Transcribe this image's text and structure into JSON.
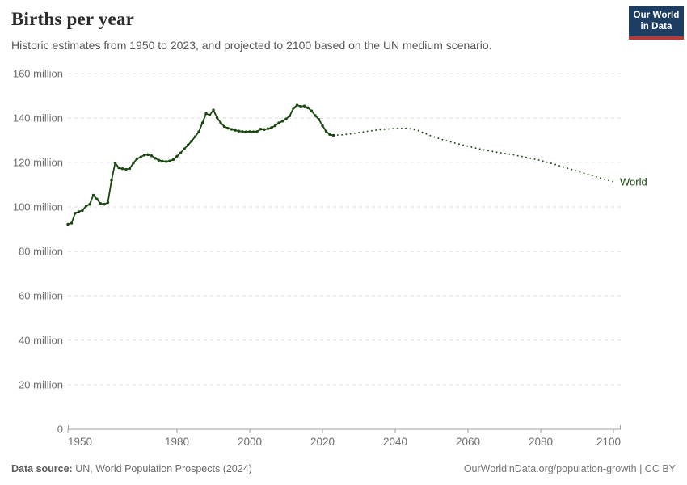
{
  "header": {
    "title": "Births per year",
    "subtitle": "Historic estimates from 1950 to 2023, and projected to 2100 based on the UN medium scenario."
  },
  "logo": {
    "line1": "Our World",
    "line2": "in Data"
  },
  "footer": {
    "source_label": "Data source:",
    "source_text": " UN, World Population Prospects (2024)",
    "link_text": "OurWorldinData.org/population-growth | CC BY"
  },
  "chart_data": {
    "type": "line",
    "title": "Births per year",
    "xlabel": "",
    "ylabel": "",
    "unit": "million",
    "xlim": [
      1950,
      2100
    ],
    "ylim": [
      0,
      160
    ],
    "grid": true,
    "legend_position": "end-of-line",
    "end_label": "World",
    "colors": {
      "line": "#18470f",
      "grid": "#dcdcdc",
      "axis": "#a1a1a1",
      "tick_text": "#6e6e6e"
    },
    "xticks": [
      1950,
      1980,
      2000,
      2020,
      2040,
      2060,
      2080,
      2100
    ],
    "yticks": [
      {
        "v": 0,
        "label": "0"
      },
      {
        "v": 20,
        "label": "20 million"
      },
      {
        "v": 40,
        "label": "40 million"
      },
      {
        "v": 60,
        "label": "60 million"
      },
      {
        "v": 80,
        "label": "80 million"
      },
      {
        "v": 100,
        "label": "100 million"
      },
      {
        "v": 120,
        "label": "120 million"
      },
      {
        "v": 140,
        "label": "140 million"
      },
      {
        "v": 160,
        "label": "160 million"
      }
    ],
    "series": [
      {
        "name": "World — historic estimates",
        "style": "solid",
        "markers": true,
        "points": [
          [
            1950,
            92.2
          ],
          [
            1951,
            92.7
          ],
          [
            1952,
            97.2
          ],
          [
            1953,
            97.9
          ],
          [
            1954,
            98.4
          ],
          [
            1955,
            100.4
          ],
          [
            1956,
            101.2
          ],
          [
            1957,
            105.3
          ],
          [
            1958,
            103.5
          ],
          [
            1959,
            101.5
          ],
          [
            1960,
            101.2
          ],
          [
            1961,
            102.0
          ],
          [
            1962,
            112.0
          ],
          [
            1963,
            119.8
          ],
          [
            1964,
            117.6
          ],
          [
            1965,
            117.2
          ],
          [
            1966,
            116.9
          ],
          [
            1967,
            117.3
          ],
          [
            1968,
            119.7
          ],
          [
            1969,
            121.7
          ],
          [
            1970,
            122.4
          ],
          [
            1971,
            123.3
          ],
          [
            1972,
            123.5
          ],
          [
            1973,
            123.0
          ],
          [
            1974,
            121.9
          ],
          [
            1975,
            121.0
          ],
          [
            1976,
            120.6
          ],
          [
            1977,
            120.4
          ],
          [
            1978,
            120.7
          ],
          [
            1979,
            121.3
          ],
          [
            1980,
            122.8
          ],
          [
            1981,
            124.3
          ],
          [
            1982,
            126.1
          ],
          [
            1983,
            127.8
          ],
          [
            1984,
            129.6
          ],
          [
            1985,
            131.6
          ],
          [
            1986,
            133.8
          ],
          [
            1987,
            137.8
          ],
          [
            1988,
            142.0
          ],
          [
            1989,
            141.3
          ],
          [
            1990,
            143.6
          ],
          [
            1991,
            140.2
          ],
          [
            1992,
            137.9
          ],
          [
            1993,
            136.2
          ],
          [
            1994,
            135.4
          ],
          [
            1995,
            134.9
          ],
          [
            1996,
            134.5
          ],
          [
            1997,
            134.1
          ],
          [
            1998,
            133.9
          ],
          [
            1999,
            133.8
          ],
          [
            2000,
            133.9
          ],
          [
            2001,
            133.8
          ],
          [
            2002,
            133.9
          ],
          [
            2003,
            135.0
          ],
          [
            2004,
            134.8
          ],
          [
            2005,
            135.2
          ],
          [
            2006,
            135.7
          ],
          [
            2007,
            136.5
          ],
          [
            2008,
            137.8
          ],
          [
            2009,
            138.6
          ],
          [
            2010,
            139.6
          ],
          [
            2011,
            141.0
          ],
          [
            2012,
            144.4
          ],
          [
            2013,
            145.8
          ],
          [
            2014,
            145.2
          ],
          [
            2015,
            145.4
          ],
          [
            2016,
            144.6
          ],
          [
            2017,
            143.2
          ],
          [
            2018,
            141.1
          ],
          [
            2019,
            139.4
          ],
          [
            2020,
            136.6
          ],
          [
            2021,
            134.0
          ],
          [
            2022,
            132.6
          ],
          [
            2023,
            132.2
          ]
        ]
      },
      {
        "name": "World — UN medium projection",
        "style": "dotted",
        "markers": false,
        "points": [
          [
            2023,
            132.2
          ],
          [
            2025,
            132.4
          ],
          [
            2028,
            132.9
          ],
          [
            2030,
            133.4
          ],
          [
            2033,
            134.2
          ],
          [
            2036,
            134.8
          ],
          [
            2040,
            135.3
          ],
          [
            2043,
            135.4
          ],
          [
            2046,
            134.6
          ],
          [
            2050,
            131.8
          ],
          [
            2053,
            130.3
          ],
          [
            2056,
            128.9
          ],
          [
            2060,
            127.3
          ],
          [
            2064,
            125.8
          ],
          [
            2068,
            124.6
          ],
          [
            2072,
            123.6
          ],
          [
            2076,
            122.3
          ],
          [
            2080,
            120.9
          ],
          [
            2084,
            119.1
          ],
          [
            2088,
            117.1
          ],
          [
            2092,
            115.1
          ],
          [
            2096,
            113.2
          ],
          [
            2100,
            111.3
          ]
        ]
      }
    ]
  }
}
